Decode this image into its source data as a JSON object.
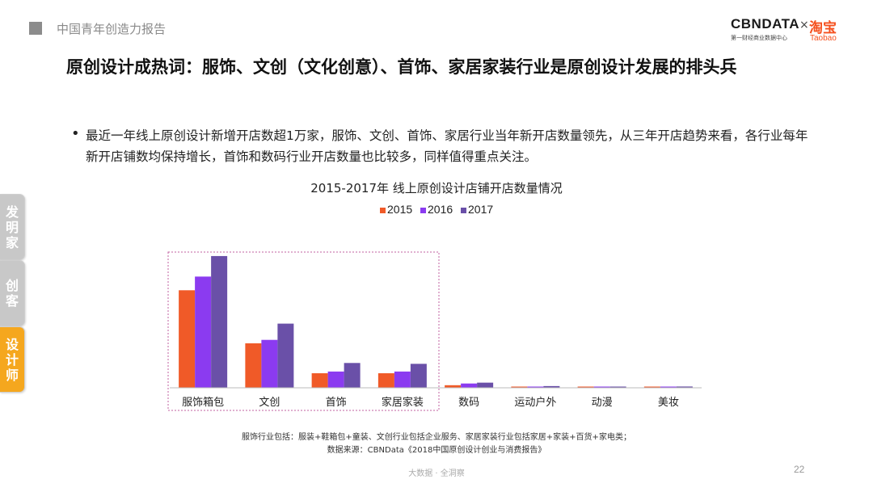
{
  "header": {
    "title": "中国青年创造力报告"
  },
  "brand": {
    "cbndata": "CBNDATA",
    "cbndata_sub": "第一财经商业数据中心",
    "separator": "×",
    "taobao": "淘宝",
    "taobao_en": "Taobao"
  },
  "main_title": "原创设计成热词：服饰、文创（文化创意）、首饰、家居家装行业是原创设计发展的排头兵",
  "bullet": "最近一年线上原创设计新增开店数超1万家，服饰、文创、首饰、家居行业当年新开店数量领先，从三年开店趋势来看，各行业每年新开店铺数均保持增长，首饰和数码行业开店数量也比较多，同样值得重点关注。",
  "side_tabs": [
    {
      "label": "发明家",
      "color": "#c8c8c8"
    },
    {
      "label": "创客",
      "color": "#c8c8c8"
    },
    {
      "label": "设计师",
      "color": "#f5a71e"
    }
  ],
  "chart_data": {
    "type": "bar",
    "title": "2015-2017年 线上原创设计店铺开店数量情况",
    "categories": [
      "服饰箱包",
      "文创",
      "首饰",
      "家居家装",
      "数码",
      "运动户外",
      "动漫",
      "美妆"
    ],
    "series": [
      {
        "name": "2015",
        "color": "#f05a28",
        "values": [
          114,
          52,
          17,
          17,
          3,
          1,
          0.6,
          1
        ]
      },
      {
        "name": "2016",
        "color": "#8b3bf0",
        "values": [
          130,
          56,
          19,
          19,
          5,
          1,
          0.8,
          1
        ]
      },
      {
        "name": "2017",
        "color": "#6a50a8",
        "values": [
          154,
          75,
          29,
          28,
          6,
          2,
          1.2,
          1.5
        ]
      }
    ],
    "ylim": [
      0,
      170
    ],
    "legend": "top-center",
    "grid": false,
    "highlight_categories": [
      "服饰箱包",
      "文创",
      "首饰",
      "家居家装"
    ]
  },
  "footnote": {
    "line1": "服饰行业包括：服装+鞋箱包+童装、文创行业包括企业服务、家居家装行业包括家居+家装+百货+家电类；",
    "line2": "数据来源：CBNData《2018中国原创设计创业与消费报告》"
  },
  "footer": {
    "text": "大数据 · 全洞察",
    "page": "22"
  }
}
